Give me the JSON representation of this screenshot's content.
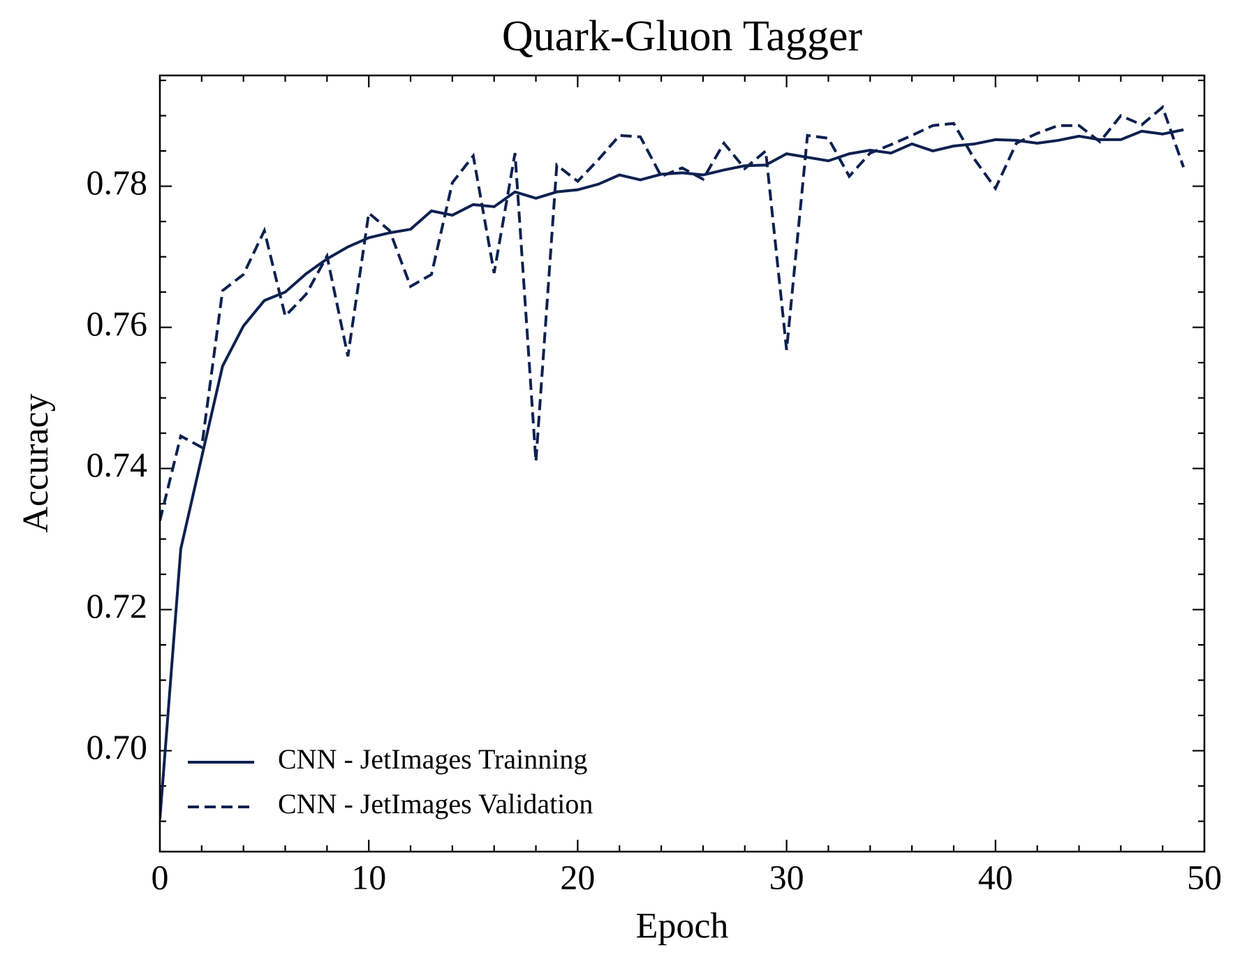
{
  "chart_data": {
    "type": "line",
    "title": "Quark-Gluon Tagger",
    "xlabel": "Epoch",
    "ylabel": "Accuracy",
    "x": [
      0,
      1,
      2,
      3,
      4,
      5,
      6,
      7,
      8,
      9,
      10,
      11,
      12,
      13,
      14,
      15,
      16,
      17,
      18,
      19,
      20,
      21,
      22,
      23,
      24,
      25,
      26,
      27,
      28,
      29,
      30,
      31,
      32,
      33,
      34,
      35,
      36,
      37,
      38,
      39,
      40,
      41,
      42,
      43,
      44,
      45,
      46,
      47,
      48,
      49
    ],
    "series": [
      {
        "name": "CNN - JetImages Trainning",
        "color": "#0d2150",
        "dash": "solid",
        "values": [
          0.6903,
          0.7286,
          0.7416,
          0.7545,
          0.7602,
          0.7638,
          0.765,
          0.7676,
          0.7697,
          0.7714,
          0.7727,
          0.7734,
          0.7739,
          0.7765,
          0.7759,
          0.7774,
          0.7771,
          0.7792,
          0.7783,
          0.7792,
          0.7795,
          0.7803,
          0.7816,
          0.7809,
          0.7817,
          0.7819,
          0.7816,
          0.7823,
          0.7829,
          0.783,
          0.7846,
          0.7841,
          0.7836,
          0.7846,
          0.7851,
          0.7847,
          0.786,
          0.785,
          0.7857,
          0.786,
          0.7866,
          0.7865,
          0.7861,
          0.7865,
          0.7871,
          0.7866,
          0.7866,
          0.7878,
          0.7874,
          0.788
        ]
      },
      {
        "name": "CNN - JetImages Validation",
        "color": "#0d2150",
        "dash": "dashed",
        "values": [
          0.7326,
          0.7446,
          0.743,
          0.7652,
          0.7675,
          0.7737,
          0.7616,
          0.7647,
          0.7701,
          0.7559,
          0.7762,
          0.7737,
          0.7658,
          0.7675,
          0.7805,
          0.7843,
          0.7677,
          0.7847,
          0.741,
          0.783,
          0.7807,
          0.7838,
          0.7872,
          0.787,
          0.7814,
          0.7826,
          0.781,
          0.7861,
          0.7825,
          0.785,
          0.7568,
          0.7872,
          0.7868,
          0.7814,
          0.7847,
          0.7859,
          0.7872,
          0.7886,
          0.7889,
          0.7838,
          0.7797,
          0.7861,
          0.7875,
          0.7886,
          0.7886,
          0.7863,
          0.79,
          0.7887,
          0.7912,
          0.7827
        ]
      }
    ],
    "xlim": [
      0,
      50
    ],
    "xticks": [
      0,
      10,
      20,
      30,
      40,
      50
    ],
    "ylim": [
      0.6857,
      0.7957
    ],
    "yticks": [
      {
        "value": 0.7,
        "label": "0.70"
      },
      {
        "value": 0.72,
        "label": "0.72"
      },
      {
        "value": 0.74,
        "label": "0.74"
      },
      {
        "value": 0.76,
        "label": "0.76"
      },
      {
        "value": 0.78,
        "label": "0.78"
      }
    ],
    "xminor_divisions": 5,
    "yminor_divisions": 4,
    "grid": false,
    "legend": "lower left"
  }
}
